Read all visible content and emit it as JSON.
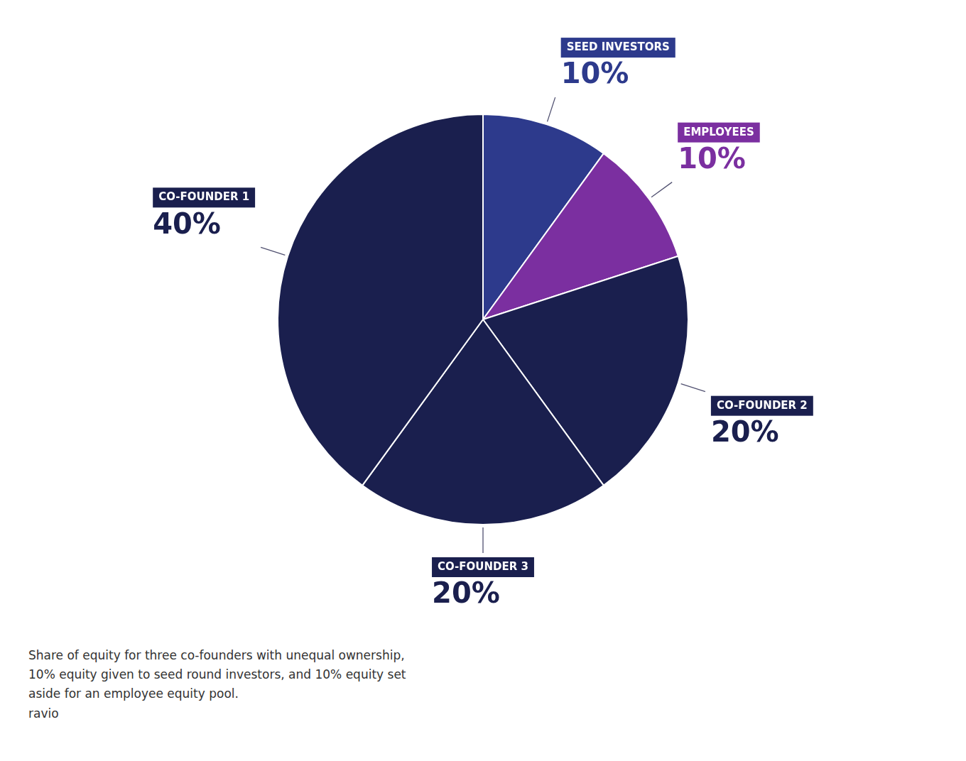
{
  "chart_data": {
    "type": "pie",
    "categories": [
      "SEED INVESTORS",
      "EMPLOYEES",
      "CO-FOUNDER 2",
      "CO-FOUNDER 3",
      "CO-FOUNDER 1"
    ],
    "values": [
      10,
      10,
      20,
      20,
      40
    ],
    "value_labels": [
      "10%",
      "10%",
      "20%",
      "20%",
      "40%"
    ],
    "colors": [
      "#2d3a8c",
      "#7b2fa0",
      "#1a1f4e",
      "#1a1f4e",
      "#1a1f4e"
    ],
    "data_labels": true,
    "annotations": [
      "Share of equity for three co-founders with unequal ownership,",
      "10% equity given to seed round investors, and 10% equity set",
      "aside for an employee equity pool.",
      "ravio"
    ]
  }
}
